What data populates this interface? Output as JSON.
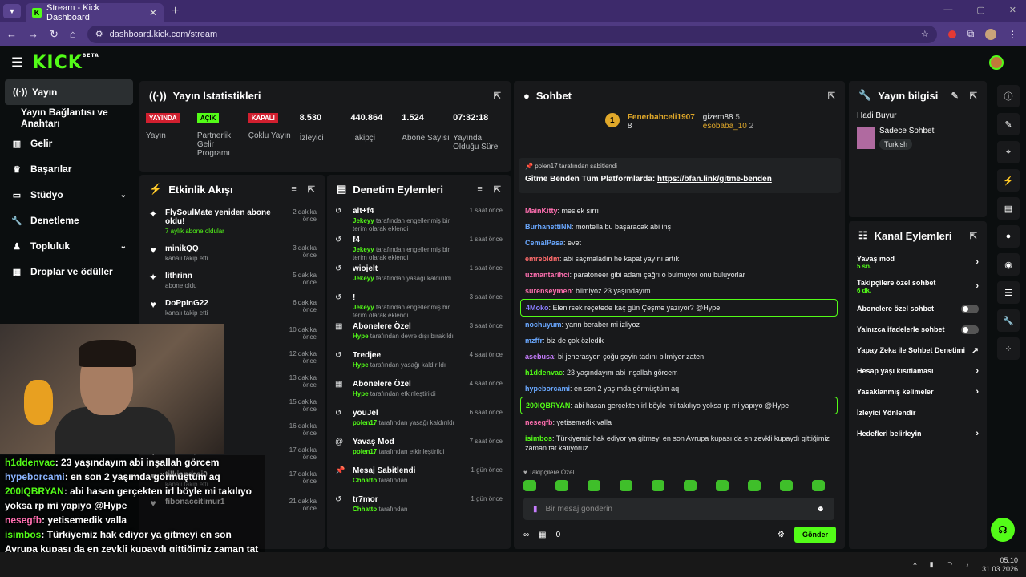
{
  "browser": {
    "tab_title": "Stream - Kick Dashboard",
    "url": "dashboard.kick.com/stream"
  },
  "sidebar": {
    "items": [
      {
        "label": "Yayın",
        "icon": "broadcast-icon",
        "active": true
      },
      {
        "label": "Yayın Bağlantısı ve Anahtarı",
        "icon": "",
        "sub": true
      },
      {
        "label": "Gelir",
        "icon": "chart-icon"
      },
      {
        "label": "Başarılar",
        "icon": "trophy-icon"
      },
      {
        "label": "Stüdyo",
        "icon": "monitor-icon",
        "chevron": true
      },
      {
        "label": "Denetleme",
        "icon": "wrench-icon"
      },
      {
        "label": "Topluluk",
        "icon": "people-icon",
        "chevron": true
      },
      {
        "label": "Droplar ve ödüller",
        "icon": "gift-icon"
      }
    ]
  },
  "stats": {
    "title": "Yayın İstatistikleri",
    "cells": [
      {
        "badge": "YAYINDA",
        "badge_color": "#d11f2f",
        "value": "",
        "label": "Yayın"
      },
      {
        "badge": "AÇIK",
        "badge_color": "#53fc18",
        "value": "",
        "label": "Partnerlik Gelir Programı"
      },
      {
        "badge": "KAPALI",
        "badge_color": "#d11f2f",
        "value": "",
        "label": "Çoklu Yayın"
      },
      {
        "badge": "",
        "value": "8.530",
        "label": "İzleyici"
      },
      {
        "badge": "",
        "value": "440.864",
        "label": "Takipçi"
      },
      {
        "badge": "",
        "value": "1.524",
        "label": "Abone Sayısı"
      },
      {
        "badge": "",
        "value": "07:32:18",
        "label": "Yayında Olduğu Süre"
      }
    ]
  },
  "activity": {
    "title": "Etkinlik Akışı",
    "items": [
      {
        "icon": "sparkle-icon",
        "name": "FlySoulMate yeniden abone oldu!",
        "sub": "7 aylık abone oldular",
        "green": true,
        "time": "2 dakika önce"
      },
      {
        "icon": "heart-icon",
        "name": "minikQQ",
        "sub": "kanalı takip etti",
        "time": "3 dakika önce"
      },
      {
        "icon": "sparkle-icon",
        "name": "lithrinn",
        "sub": "abone oldu",
        "time": "5 dakika önce"
      },
      {
        "icon": "heart-icon",
        "name": "DoPpInG22",
        "sub": "kanalı takip etti",
        "time": "6 dakika önce"
      },
      {
        "icon": "heart-icon",
        "name": "",
        "sub": "",
        "time": "10 dakika önce"
      },
      {
        "icon": "heart-icon",
        "name": "",
        "sub": "",
        "time": "12 dakika önce"
      },
      {
        "icon": "heart-icon",
        "name": "",
        "sub": "",
        "time": "13 dakika önce"
      },
      {
        "icon": "heart-icon",
        "name": "",
        "sub": "",
        "time": "15 dakika önce"
      },
      {
        "icon": "heart-icon",
        "name": "TIMERDOO",
        "sub": "",
        "time": "16 dakika önce"
      },
      {
        "icon": "heart-icon",
        "name": "",
        "sub": "kanalı takip etti",
        "time": "17 dakika önce"
      },
      {
        "icon": "heart-icon",
        "name": "tilkiandrei0",
        "sub": "kanalı takip etti",
        "time": "17 dakika önce"
      },
      {
        "icon": "heart-icon",
        "name": "fibonaccitimur1",
        "sub": "",
        "time": "21 dakika önce"
      }
    ]
  },
  "moderation": {
    "title": "Denetim Eylemleri",
    "items": [
      {
        "icon": "undo-icon",
        "name": "alt+f4",
        "by": "Jekeyy",
        "text": "tarafından engellenmiş bir terim olarak eklendi",
        "time": "1 saat önce"
      },
      {
        "icon": "undo-icon",
        "name": "f4",
        "by": "Jekeyy",
        "text": "tarafından engellenmiş bir terim olarak eklendi",
        "time": "1 saat önce"
      },
      {
        "icon": "undo-icon",
        "name": "wiojelt",
        "by": "Jekeyy",
        "text": "tarafından yasağı kaldırıldı",
        "time": "1 saat önce"
      },
      {
        "icon": "undo-icon",
        "name": "!",
        "by": "Jekeyy",
        "text": "tarafından engellenmiş bir terim olarak eklendi",
        "time": "3 saat önce"
      },
      {
        "icon": "gift-icon",
        "name": "Abonelere Özel",
        "by": "Hype",
        "text": "tarafından devre dışı bırakıldı",
        "time": "3 saat önce"
      },
      {
        "icon": "undo-icon",
        "name": "Tredjee",
        "by": "Hype",
        "text": "tarafından yasağı kaldırıldı",
        "time": "4 saat önce"
      },
      {
        "icon": "gift-icon",
        "name": "Abonelere Özel",
        "by": "Hype",
        "text": "tarafından etkinleştirildi",
        "time": "4 saat önce"
      },
      {
        "icon": "undo-icon",
        "name": "youJel",
        "by": "polen17",
        "text": "tarafından yasağı kaldırıldı",
        "time": "6 saat önce"
      },
      {
        "icon": "snail-icon",
        "name": "Yavaş Mod",
        "by": "polen17",
        "text": "tarafından etkinleştirildi",
        "time": "7 saat önce"
      },
      {
        "icon": "pin-icon",
        "name": "Mesaj Sabitlendi",
        "by": "Chhatto",
        "text": "tarafından",
        "time": "1 gün önce"
      },
      {
        "icon": "undo-icon",
        "name": "tr7mor",
        "by": "Chhatto",
        "text": "tarafından",
        "time": "1 gün önce"
      }
    ]
  },
  "chat": {
    "title": "Sohbet",
    "leaders": [
      {
        "rank": "1",
        "name": "Fenerbahceli1907",
        "count": "8"
      },
      {
        "name": "gizem88",
        "count": "5"
      },
      {
        "name": "esobaba_10",
        "count": "2"
      }
    ],
    "pinned": {
      "by": "polen17 tarafından sabitlendi",
      "text": "Gitme Benden Tüm Platformlarda:",
      "link": "https://bfan.link/gitme-benden"
    },
    "messages": [
      {
        "user": "MainKitty",
        "color": "#ff6fb0",
        "text": ": meslek sırrı"
      },
      {
        "user": "BurhanettiNN",
        "color": "#6aa8ff",
        "text": ": montella bu başaracak abi inş"
      },
      {
        "user": "CemalPasa",
        "color": "#6aa8ff",
        "text": ": evet"
      },
      {
        "user": "emrebldm",
        "color": "#ff6b6b",
        "text": ": abi saçmaladın he kapat yayını artık"
      },
      {
        "user": "uzmantarihci",
        "color": "#ff6fb0",
        "text": ": paratoneer gibi adam çağrı o bulmuyor onu buluyorlar"
      },
      {
        "user": "surenseymen",
        "color": "#ff6fb0",
        "text": ": bilmiyoz 23 yaşındayım"
      },
      {
        "user": "4Moko",
        "color": "#8a7dff",
        "text": ": Elenirsek reçetede kaç gün Çeşme yazıyor? @Hype",
        "hl": true
      },
      {
        "user": "nochuyum",
        "color": "#6aa8ff",
        "text": ": yarın beraber mi izliyoz"
      },
      {
        "user": "mzffr",
        "color": "#6aa8ff",
        "text": ": biz de çok özledik"
      },
      {
        "user": "asebusa",
        "color": "#c77dff",
        "text": ": bi jenerasyon çoğu şeyin tadını bilmiyor zaten"
      },
      {
        "user": "h1ddenvac",
        "color": "#53fc18",
        "text": ": 23 yaşındayım abi inşallah görcem"
      },
      {
        "user": "hypeborcami",
        "color": "#6aa8ff",
        "text": ": en son 2 yaşımda görmüştüm aq"
      },
      {
        "user": "200IQBRYAN",
        "color": "#53fc18",
        "text": ": abi hasan gerçekten irl böyle mi takılıyo yoksa rp mi yapıyo @Hype",
        "hl": true
      },
      {
        "user": "nesegfb",
        "color": "#ff6fb0",
        "text": ": yetisemedik valla"
      },
      {
        "user": "isimbos",
        "color": "#53fc18",
        "text": ": Türkiyemiz hak ediyor ya gitmeyi en son Avrupa kupası da en zevkli kupaydı gittiğimiz zaman tat katıyoruz"
      }
    ],
    "follow_note": "Takipçilere Özel",
    "input_placeholder": "Bir mesaj gönderin",
    "points": "0",
    "send_label": "Gönder"
  },
  "stream_info": {
    "title": "Yayın bilgisi",
    "stream_title": "Hadi Buyur",
    "category": "Sadece Sohbet",
    "tag": "Turkish"
  },
  "channel_actions": {
    "title": "Kanal Eylemleri",
    "items": [
      {
        "label": "Yavaş mod",
        "sub": "5 sn.",
        "type": "chevron"
      },
      {
        "label": "Takipçilere özel sohbet",
        "sub": "6 dk.",
        "type": "chevron"
      },
      {
        "label": "Abonelere özel sohbet",
        "sub": "",
        "type": "toggle"
      },
      {
        "label": "Yalnızca ifadelerle sohbet",
        "sub": "",
        "type": "toggle"
      },
      {
        "label": "Yapay Zeka ile Sohbet Denetimi",
        "sub": "",
        "type": "external"
      },
      {
        "label": "Hesap yaşı kısıtlaması",
        "sub": "",
        "type": "chevron"
      },
      {
        "label": "Yasaklanmış kelimeler",
        "sub": "",
        "type": "chevron"
      },
      {
        "label": "İzleyici Yönlendir",
        "sub": "",
        "type": "none"
      },
      {
        "label": "Hedefleri belirleyin",
        "sub": "",
        "type": "chevron"
      }
    ]
  },
  "overlay_chat": [
    {
      "user": "h1ddenvac",
      "color": "#53fc18",
      "text": ": 23 yaşındayım abi inşallah görcem"
    },
    {
      "user": "hypeborcami",
      "color": "#8ab4ff",
      "text": ": en son 2 yaşımda görmüştüm aq"
    },
    {
      "user": "200IQBRYAN",
      "color": "#53fc18",
      "text": ": abi hasan gerçekten irl böyle mi takılıyo yoksa rp mi yapıyo @Hype"
    },
    {
      "user": "nesegfb",
      "color": "#ff6fb0",
      "text": ": yetisemedik valla"
    },
    {
      "user": "isimbos",
      "color": "#53fc18",
      "text": ": Türkiyemiz hak ediyor ya gitmeyi en son Avrupa kupası da en zevkli kupaydı gittiğimiz zaman tat katıyoruz"
    }
  ],
  "taskbar": {
    "time": "05:10",
    "date": "31.03.2026"
  }
}
